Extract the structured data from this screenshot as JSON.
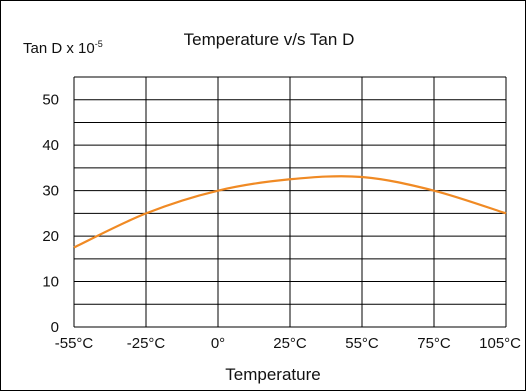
{
  "chart_data": {
    "type": "line",
    "title": "Temperature v/s Tan D",
    "xlabel": "Temperature",
    "ylabel": "Tan D x 10",
    "ylabel_exponent": "-5",
    "x_categories": [
      "-55°C",
      "-25°C",
      "0°",
      "25°C",
      "55°C",
      "75°C",
      "105°C"
    ],
    "y_ticks": [
      "50",
      "40",
      "30",
      "20",
      "10",
      "0"
    ],
    "y_tick_values": [
      50,
      40,
      30,
      20,
      10,
      0
    ],
    "ylim": [
      0,
      55
    ],
    "grid": true,
    "series": [
      {
        "color": "#F08A24",
        "points": [
          {
            "x": "-55°C",
            "y": 17.5
          },
          {
            "x": "-25°C",
            "y": 25
          },
          {
            "x": "0°",
            "y": 30
          },
          {
            "x": "25°C",
            "y": 32.5
          },
          {
            "x": "55°C",
            "y": 33
          },
          {
            "x": "75°C",
            "y": 30
          },
          {
            "x": "105°C",
            "y": 25
          }
        ]
      }
    ]
  }
}
